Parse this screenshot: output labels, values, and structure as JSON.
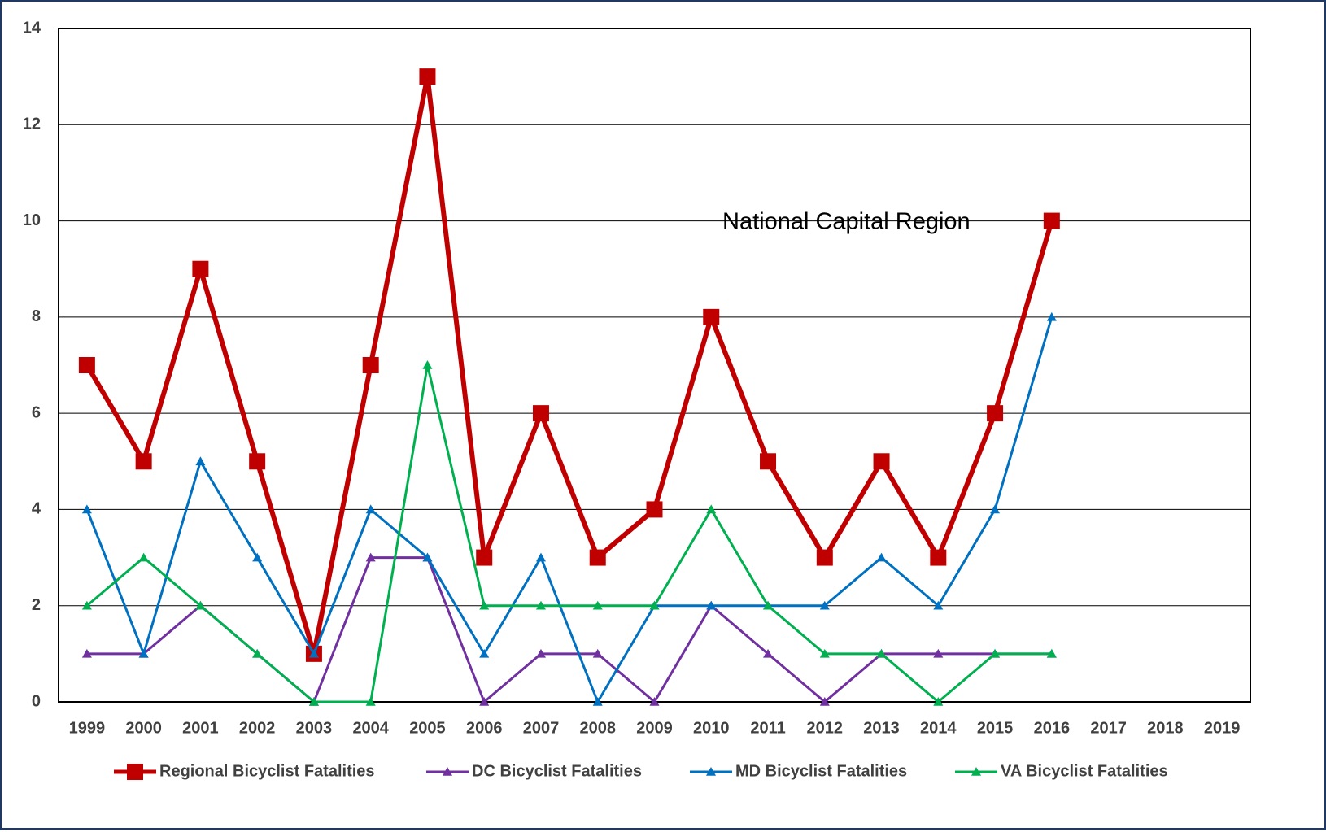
{
  "chart_data": {
    "type": "line",
    "annotation": "National Capital Region",
    "categories": [
      "1999",
      "2000",
      "2001",
      "2002",
      "2003",
      "2004",
      "2005",
      "2006",
      "2007",
      "2008",
      "2009",
      "2010",
      "2011",
      "2012",
      "2013",
      "2014",
      "2015",
      "2016",
      "2017",
      "2018",
      "2019"
    ],
    "series": [
      {
        "name": "Regional Bicyclist Fatalities",
        "color": "#c00000",
        "marker": "square",
        "values": [
          7,
          5,
          9,
          5,
          1,
          7,
          13,
          3,
          6,
          3,
          4,
          8,
          5,
          3,
          5,
          3,
          6,
          10,
          null,
          null,
          null
        ]
      },
      {
        "name": "DC Bicyclist Fatalities",
        "color": "#7030a0",
        "marker": "triangle",
        "values": [
          1,
          1,
          2,
          1,
          0,
          3,
          3,
          0,
          1,
          1,
          0,
          2,
          1,
          0,
          1,
          1,
          1,
          1,
          null,
          null,
          null
        ]
      },
      {
        "name": "MD Bicyclist Fatalities",
        "color": "#0070c0",
        "marker": "triangle",
        "values": [
          4,
          1,
          5,
          3,
          1,
          4,
          3,
          1,
          3,
          0,
          2,
          2,
          2,
          2,
          3,
          2,
          4,
          8,
          null,
          null,
          null
        ]
      },
      {
        "name": "VA Bicyclist Fatalities",
        "color": "#00b050",
        "marker": "triangle",
        "values": [
          2,
          3,
          2,
          1,
          0,
          0,
          7,
          2,
          2,
          2,
          2,
          4,
          2,
          1,
          1,
          0,
          1,
          1,
          null,
          null,
          null
        ]
      }
    ],
    "ylim": [
      0,
      14
    ],
    "yticks": [
      0,
      2,
      4,
      6,
      8,
      10,
      12,
      14
    ],
    "grid": true,
    "legend": "bottom"
  }
}
